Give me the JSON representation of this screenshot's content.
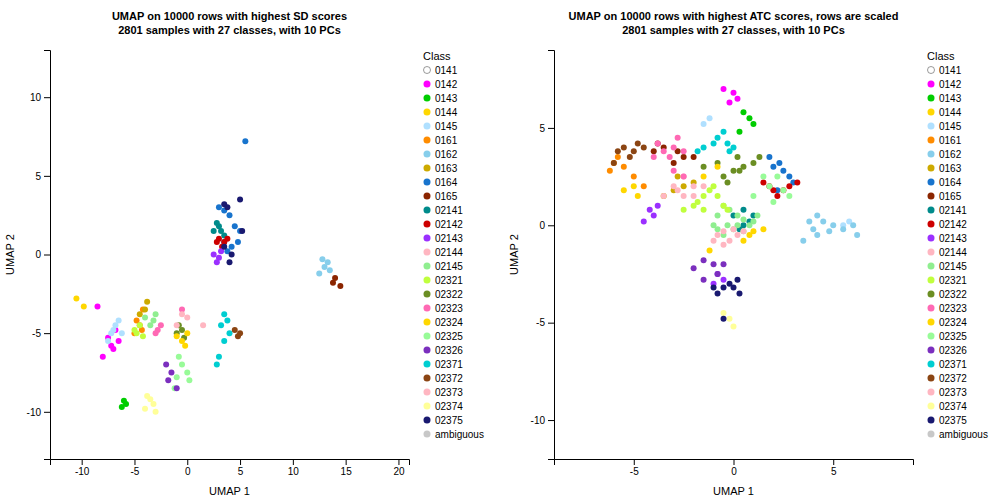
{
  "chart_data": [
    {
      "type": "scatter",
      "title": "UMAP on 10000 rows with highest SD scores\n2801 samples with 27 classes, with 10 PCs",
      "xlabel": "UMAP 1",
      "ylabel": "UMAP 2",
      "legend_title": "Class",
      "legend": "right",
      "grid": false,
      "xlim": [
        -13,
        21
      ],
      "ylim": [
        -13,
        13
      ],
      "xticks": [
        -10,
        -5,
        0,
        5,
        10,
        15,
        20
      ],
      "yticks": [
        -10,
        -5,
        0,
        5,
        10
      ],
      "series": [
        {
          "name": "0141",
          "color": "#FFFFFF",
          "x": [],
          "values": []
        },
        {
          "name": "0142",
          "color": "#FF00FF",
          "x": [
            -8.5,
            -7.5,
            -8.0,
            -6.8,
            -7.2,
            -7.0,
            -6.5
          ],
          "values": [
            -3.3,
            -5.3,
            -6.5,
            -4.8,
            -5.8,
            -6.0,
            -5.5
          ]
        },
        {
          "name": "0143",
          "color": "#00CD00",
          "x": [
            -6.0,
            -5.8,
            -6.2
          ],
          "values": [
            -9.3,
            -9.5,
            -9.7
          ]
        },
        {
          "name": "0144",
          "color": "#FFD700",
          "x": [
            -10.5,
            -9.8
          ],
          "values": [
            -2.8,
            -3.3
          ]
        },
        {
          "name": "0145",
          "color": "#B0E0FF",
          "x": [
            -6.5,
            -6.8,
            -7.0,
            -7.2,
            -7.5,
            -6.2
          ],
          "values": [
            -4.2,
            -4.5,
            -4.8,
            -5.0,
            -5.5,
            -5.0
          ]
        },
        {
          "name": "0161",
          "color": "#FF8C00",
          "x": [
            -4.5,
            -4.2,
            -4.8,
            -5.0,
            -4.3
          ],
          "values": [
            -4.5,
            -3.5,
            -4.2,
            -5.0,
            -4.8
          ]
        },
        {
          "name": "0162",
          "color": "#87CEEB",
          "x": [
            13.0,
            13.3,
            12.8,
            13.5,
            12.5
          ],
          "values": [
            -0.8,
            -0.5,
            -0.3,
            -1.0,
            -1.2
          ]
        },
        {
          "name": "0163",
          "color": "#CDAA00",
          "x": [
            -4.5,
            -4.0,
            -3.8
          ],
          "values": [
            -3.8,
            -3.5,
            -3.0
          ]
        },
        {
          "name": "0164",
          "color": "#1874CD",
          "x": [
            3.0,
            4.0,
            3.5,
            4.5,
            5.0,
            4.2,
            3.8,
            3.5,
            4.8,
            5.5
          ],
          "values": [
            3.0,
            2.5,
            2.8,
            1.8,
            1.5,
            0.5,
            0.2,
            0.8,
            0.8,
            7.2
          ]
        },
        {
          "name": "0165",
          "color": "#8B2500",
          "x": [
            14.0,
            13.8,
            14.5
          ],
          "values": [
            -1.5,
            -1.8,
            -2.0
          ]
        },
        {
          "name": "02141",
          "color": "#008B8B",
          "x": [
            3.0,
            3.2,
            2.8,
            3.5,
            2.5
          ],
          "values": [
            1.8,
            1.5,
            2.0,
            1.2,
            1.5
          ]
        },
        {
          "name": "02142",
          "color": "#CD0000",
          "x": [
            3.3,
            3.0,
            2.8,
            3.5,
            3.8
          ],
          "values": [
            0.5,
            1.0,
            0.8,
            0.8,
            1.0
          ]
        },
        {
          "name": "02143",
          "color": "#9B30FF",
          "x": [
            2.5,
            3.0,
            3.2,
            2.8
          ],
          "values": [
            0.0,
            -0.2,
            0.2,
            -0.5
          ]
        },
        {
          "name": "02144",
          "color": "#FFB6C1",
          "x": [
            1.5
          ],
          "values": [
            -4.5
          ]
        },
        {
          "name": "02145",
          "color": "#90EE90",
          "x": [
            -3.0,
            -3.5,
            -4.0,
            -3.2
          ],
          "values": [
            -3.8,
            -4.5,
            -4.0,
            -4.2
          ]
        },
        {
          "name": "02321",
          "color": "#C0FF3E",
          "x": [
            -4.5,
            -4.8,
            -5.0,
            -4.2
          ],
          "values": [
            -4.5,
            -5.0,
            -4.8,
            -5.2
          ]
        },
        {
          "name": "02322",
          "color": "#6B8E23",
          "x": [
            -0.5,
            -1.0,
            -0.8,
            -0.3
          ],
          "values": [
            -4.8,
            -5.0,
            -4.5,
            -5.3
          ]
        },
        {
          "name": "02323",
          "color": "#FF69B4",
          "x": [
            -2.8,
            -3.0,
            -2.5,
            -0.5
          ],
          "values": [
            -4.8,
            -5.0,
            -4.5,
            -3.5
          ]
        },
        {
          "name": "02324",
          "color": "#FFD700",
          "x": [
            -0.5,
            -0.2,
            0.0,
            -1.0
          ],
          "values": [
            -5.5,
            -5.8,
            -5.0,
            -5.2
          ]
        },
        {
          "name": "02325",
          "color": "#98FB98",
          "x": [
            -0.8,
            -0.5,
            0.0,
            0.2,
            -1.0,
            -1.2
          ],
          "values": [
            -6.5,
            -7.0,
            -7.5,
            -8.0,
            -7.8,
            -8.5
          ]
        },
        {
          "name": "02326",
          "color": "#7B2FBE",
          "x": [
            -1.5,
            -1.8,
            -2.0,
            -1.0
          ],
          "values": [
            -7.5,
            -8.0,
            -7.0,
            -8.5
          ]
        },
        {
          "name": "02371",
          "color": "#00CED1",
          "x": [
            3.5,
            3.2,
            3.8,
            4.0,
            3.5,
            3.0,
            2.8
          ],
          "values": [
            -3.8,
            -4.5,
            -4.2,
            -5.0,
            -5.5,
            -6.5,
            -7.0
          ]
        },
        {
          "name": "02372",
          "color": "#8B4513",
          "x": [
            4.5,
            4.8,
            5.0
          ],
          "values": [
            -4.8,
            -5.2,
            -5.0
          ]
        },
        {
          "name": "02373",
          "color": "#FFB6C1",
          "x": [
            -0.5,
            0.0,
            -1.0
          ],
          "values": [
            -3.8,
            -4.0,
            -4.5
          ]
        },
        {
          "name": "02374",
          "color": "#FFFF99",
          "x": [
            -3.5,
            -3.2,
            -3.8,
            -4.0,
            -3.0
          ],
          "values": [
            -9.2,
            -9.5,
            -9.0,
            -9.8,
            -10.0
          ]
        },
        {
          "name": "02375",
          "color": "#191970",
          "x": [
            3.5,
            3.8,
            4.2,
            3.5,
            4.0,
            5.0,
            5.2
          ],
          "values": [
            3.2,
            3.0,
            0.0,
            0.5,
            -0.5,
            3.5,
            1.5
          ]
        },
        {
          "name": "ambiguous",
          "color": "#C8C8C8",
          "x": [],
          "values": []
        }
      ]
    },
    {
      "type": "scatter",
      "title": "UMAP on 10000 rows with highest ATC scores, rows are scaled\n2801 samples with 27 classes, with 10 PCs",
      "xlabel": "UMAP 1",
      "ylabel": "UMAP 2",
      "legend_title": "Class",
      "legend": "right",
      "grid": false,
      "xlim": [
        -9,
        9
      ],
      "ylim": [
        -12,
        9
      ],
      "xticks": [
        -5,
        0,
        5
      ],
      "yticks": [
        -10,
        -5,
        0,
        5
      ],
      "series": [
        {
          "name": "0141",
          "color": "#FFFFFF",
          "x": [],
          "values": []
        },
        {
          "name": "0142",
          "color": "#FF00FF",
          "x": [
            -0.5,
            0.0,
            0.2,
            -0.2
          ],
          "values": [
            7.0,
            6.8,
            6.5,
            6.3
          ]
        },
        {
          "name": "0143",
          "color": "#00CD00",
          "x": [
            0.8,
            1.0,
            0.5,
            0.3
          ],
          "values": [
            5.5,
            5.2,
            5.8,
            4.8
          ]
        },
        {
          "name": "0144",
          "color": "#FFD700",
          "x": [
            -5.0,
            -5.5,
            -4.8,
            -1.2
          ],
          "values": [
            2.0,
            1.8,
            1.5,
            -1.3
          ]
        },
        {
          "name": "0145",
          "color": "#B0E0FF",
          "x": [
            -1.2,
            -1.5,
            5.5,
            5.8
          ],
          "values": [
            5.5,
            5.2,
            0.0,
            0.2
          ]
        },
        {
          "name": "0161",
          "color": "#FF8C00",
          "x": [
            -6.0,
            -5.8,
            -6.2,
            -5.5,
            -5.0,
            -4.5
          ],
          "values": [
            3.2,
            3.5,
            2.8,
            3.0,
            2.5,
            2.0
          ]
        },
        {
          "name": "0162",
          "color": "#87CEEB",
          "x": [
            4.2,
            4.5,
            4.8,
            5.0,
            3.8,
            4.2,
            3.5,
            4.0,
            5.5,
            6.0,
            6.2
          ],
          "values": [
            0.5,
            0.2,
            -0.3,
            0.0,
            0.2,
            -0.5,
            -0.8,
            -0.2,
            -0.2,
            0.0,
            -0.5
          ]
        },
        {
          "name": "0163",
          "color": "#CDAA00",
          "x": [
            -2.5,
            -3.0,
            -2.0,
            -2.8,
            -3.5
          ],
          "values": [
            2.0,
            1.8,
            2.2,
            2.5,
            1.5
          ]
        },
        {
          "name": "0164",
          "color": "#1874CD",
          "x": [
            2.0,
            2.3,
            2.5,
            1.8,
            2.8,
            3.0,
            2.2
          ],
          "values": [
            3.0,
            3.2,
            2.8,
            3.5,
            2.5,
            2.2,
            1.8
          ]
        },
        {
          "name": "0165",
          "color": "#8B2500",
          "x": [
            -2.5,
            -3.0,
            -2.8,
            -2.0,
            -3.5,
            -4.0,
            -3.8
          ],
          "values": [
            3.5,
            3.2,
            3.8,
            3.5,
            4.0,
            3.8,
            4.2
          ]
        },
        {
          "name": "02141",
          "color": "#008B8B",
          "x": [
            0.5,
            0.8,
            0.3,
            1.0,
            0.0,
            0.5
          ],
          "values": [
            0.0,
            0.2,
            -0.2,
            0.5,
            0.5,
            0.8
          ]
        },
        {
          "name": "02142",
          "color": "#CD0000",
          "x": [
            2.0,
            1.8,
            2.2,
            2.5,
            1.5,
            2.8,
            3.2
          ],
          "values": [
            1.8,
            2.0,
            1.5,
            1.8,
            2.2,
            2.0,
            2.2
          ]
        },
        {
          "name": "02143",
          "color": "#9B30FF",
          "x": [
            -4.0,
            -4.2,
            -3.8,
            -4.5,
            -0.5,
            -0.8,
            -1.0
          ],
          "values": [
            0.5,
            0.8,
            1.0,
            0.2,
            -2.8,
            -2.5,
            -3.0
          ]
        },
        {
          "name": "02144",
          "color": "#FFB6C1",
          "x": [
            -2.5,
            -2.8,
            -2.0,
            -3.0,
            -2.5,
            -2.0,
            -3.5,
            -1.5
          ],
          "values": [
            1.5,
            1.8,
            1.5,
            2.0,
            2.5,
            2.0,
            1.5,
            2.0
          ]
        },
        {
          "name": "02145",
          "color": "#90EE90",
          "x": [
            0.5,
            0.2,
            -0.2,
            -0.5,
            -0.8,
            -1.0,
            -0.8,
            -0.5,
            -0.3,
            0.0,
            0.2,
            0.5,
            0.8,
            1.0,
            1.2
          ],
          "values": [
            0.3,
            0.5,
            0.8,
            1.0,
            0.5,
            0.0,
            -0.2,
            -0.5,
            0.0,
            -0.2,
            0.0,
            -0.3,
            0.0,
            0.2,
            0.5
          ]
        },
        {
          "name": "02321",
          "color": "#C0FF3E",
          "x": [
            -1.5,
            -1.2,
            -1.8,
            -1.0,
            -0.8,
            -0.5,
            -0.3,
            -1.5,
            -2.0,
            -2.5
          ],
          "values": [
            1.5,
            1.8,
            1.2,
            2.0,
            1.5,
            1.0,
            0.8,
            0.8,
            1.0,
            0.8
          ]
        },
        {
          "name": "02322",
          "color": "#6B8E23",
          "x": [
            -0.5,
            0.0,
            0.5,
            0.2,
            -0.8,
            -0.3,
            0.3,
            1.0,
            1.3,
            -1.5
          ],
          "values": [
            2.5,
            2.8,
            3.0,
            3.5,
            3.2,
            2.2,
            2.8,
            3.2,
            3.5,
            3.0
          ]
        },
        {
          "name": "02323",
          "color": "#FF69B4",
          "x": [
            -3.5,
            -3.0,
            -3.8,
            -2.8,
            -2.5,
            -3.2,
            -4.0,
            -2.5,
            -3.0
          ],
          "values": [
            3.8,
            4.0,
            4.2,
            4.5,
            3.8,
            3.5,
            3.5,
            2.5,
            2.8
          ]
        },
        {
          "name": "02324",
          "color": "#FFD700",
          "x": [
            -1.5,
            -0.8,
            0.5,
            0.8,
            1.0,
            1.5
          ],
          "values": [
            2.5,
            3.0,
            -0.8,
            -0.5,
            -0.3,
            -0.2
          ]
        },
        {
          "name": "02325",
          "color": "#98FB98",
          "x": [
            1.8,
            2.2,
            1.5,
            2.5,
            1.0,
            2.0,
            2.8
          ],
          "values": [
            2.0,
            2.5,
            2.5,
            1.8,
            1.5,
            1.2,
            1.5
          ]
        },
        {
          "name": "02326",
          "color": "#7B2FBE",
          "x": [
            -1.0,
            -1.5,
            -2.0,
            -0.8,
            -0.5,
            -1.5
          ],
          "values": [
            -2.0,
            -1.8,
            -2.2,
            -2.5,
            -2.0,
            -2.8
          ]
        },
        {
          "name": "02371",
          "color": "#00CED1",
          "x": [
            -0.8,
            -1.0,
            -0.5,
            -0.3,
            0.0,
            -1.5,
            -1.8,
            -0.2
          ],
          "values": [
            4.5,
            4.2,
            4.8,
            4.2,
            4.0,
            4.0,
            3.8,
            3.8
          ]
        },
        {
          "name": "02372",
          "color": "#8B4513",
          "x": [
            -5.0,
            -5.5,
            -4.8,
            -5.2,
            -5.8,
            -4.5,
            -6.0
          ],
          "values": [
            3.8,
            4.0,
            4.2,
            3.5,
            3.8,
            4.0,
            3.2
          ]
        },
        {
          "name": "02373",
          "color": "#FFB6C1",
          "x": [
            -0.5,
            -0.8,
            -1.0,
            -0.5,
            -0.2,
            0.2,
            0.5,
            0.0
          ],
          "values": [
            -0.3,
            -0.5,
            -0.8,
            -1.0,
            -0.8,
            -0.5,
            -0.3,
            -0.2
          ]
        },
        {
          "name": "02374",
          "color": "#FFFF99",
          "x": [
            -0.5,
            -0.2,
            0.0
          ],
          "values": [
            -4.5,
            -4.8,
            -5.2
          ]
        },
        {
          "name": "02375",
          "color": "#191970",
          "x": [
            -0.2,
            -0.5,
            -0.8,
            0.0,
            0.3,
            -1.0,
            -0.5,
            0.2
          ],
          "values": [
            -3.0,
            -3.2,
            -3.5,
            -3.2,
            -3.5,
            -3.2,
            -4.8,
            -2.8
          ]
        },
        {
          "name": "ambiguous",
          "color": "#C8C8C8",
          "x": [],
          "values": []
        }
      ]
    }
  ]
}
